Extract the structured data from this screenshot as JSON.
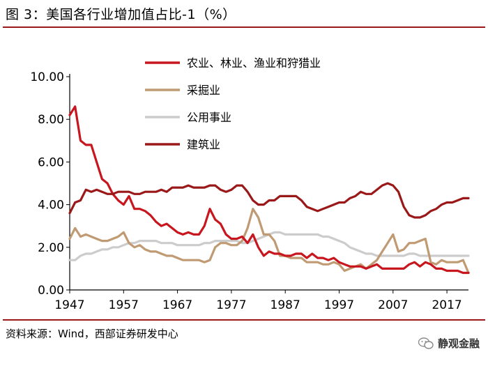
{
  "title": "图 3：美国各行业增加值占比-1（%）",
  "source": "资料来源：Wind，西部证券研发中心",
  "brand": "静观金融",
  "chart_data": {
    "type": "line",
    "title": "图 3：美国各行业增加值占比-1（%）",
    "xlabel": "",
    "ylabel": "",
    "xlim": [
      1947,
      2021
    ],
    "ylim": [
      0,
      10
    ],
    "grid": false,
    "legend_position": "top",
    "x_ticks": [
      "1947",
      "1957",
      "1967",
      "1977",
      "1987",
      "1997",
      "2007",
      "2017"
    ],
    "y_ticks": [
      "0.00",
      "2.00",
      "4.00",
      "6.00",
      "8.00",
      "10.00"
    ],
    "series": [
      {
        "name": "农业、林业、渔业和狩猎业",
        "color": "#c8161e",
        "x": [
          1947,
          1948,
          1949,
          1950,
          1951,
          1952,
          1953,
          1954,
          1955,
          1956,
          1957,
          1958,
          1959,
          1960,
          1961,
          1962,
          1963,
          1964,
          1965,
          1966,
          1967,
          1968,
          1969,
          1970,
          1971,
          1972,
          1973,
          1974,
          1975,
          1976,
          1977,
          1978,
          1979,
          1980,
          1981,
          1982,
          1983,
          1984,
          1985,
          1986,
          1987,
          1988,
          1989,
          1990,
          1991,
          1992,
          1993,
          1994,
          1995,
          1996,
          1997,
          1998,
          1999,
          2000,
          2001,
          2002,
          2003,
          2004,
          2005,
          2006,
          2007,
          2008,
          2009,
          2010,
          2011,
          2012,
          2013,
          2014,
          2015,
          2016,
          2017,
          2018,
          2019,
          2020,
          2021
        ],
        "values": [
          8.2,
          8.6,
          7.0,
          6.8,
          6.8,
          6.0,
          5.2,
          5.0,
          4.5,
          4.2,
          4.0,
          4.4,
          3.8,
          3.8,
          3.7,
          3.5,
          3.2,
          3.0,
          3.1,
          2.9,
          2.7,
          2.6,
          2.7,
          2.6,
          2.6,
          3.0,
          3.8,
          3.3,
          3.1,
          2.6,
          2.4,
          2.4,
          2.5,
          2.2,
          2.6,
          2.0,
          1.6,
          1.8,
          1.7,
          1.7,
          1.6,
          1.6,
          1.7,
          1.7,
          1.5,
          1.7,
          1.5,
          1.5,
          1.4,
          1.5,
          1.3,
          1.2,
          1.1,
          1.1,
          1.1,
          1.0,
          1.1,
          1.2,
          1.0,
          1.0,
          1.0,
          1.0,
          1.0,
          1.2,
          1.3,
          1.1,
          1.3,
          1.2,
          1.0,
          1.0,
          0.9,
          0.9,
          0.9,
          0.8,
          0.8
        ]
      },
      {
        "name": "采掘业",
        "color": "#bf9a72",
        "x": [
          1947,
          1948,
          1949,
          1950,
          1951,
          1952,
          1953,
          1954,
          1955,
          1956,
          1957,
          1958,
          1959,
          1960,
          1961,
          1962,
          1963,
          1964,
          1965,
          1966,
          1967,
          1968,
          1969,
          1970,
          1971,
          1972,
          1973,
          1974,
          1975,
          1976,
          1977,
          1978,
          1979,
          1980,
          1981,
          1982,
          1983,
          1984,
          1985,
          1986,
          1987,
          1988,
          1989,
          1990,
          1991,
          1992,
          1993,
          1994,
          1995,
          1996,
          1997,
          1998,
          1999,
          2000,
          2001,
          2002,
          2003,
          2004,
          2005,
          2006,
          2007,
          2008,
          2009,
          2010,
          2011,
          2012,
          2013,
          2014,
          2015,
          2016,
          2017,
          2018,
          2019,
          2020,
          2021
        ],
        "values": [
          2.4,
          2.9,
          2.5,
          2.6,
          2.5,
          2.4,
          2.3,
          2.3,
          2.4,
          2.5,
          2.7,
          2.2,
          2.0,
          2.1,
          1.9,
          1.8,
          1.8,
          1.7,
          1.6,
          1.6,
          1.5,
          1.4,
          1.4,
          1.4,
          1.4,
          1.3,
          1.4,
          2.0,
          2.2,
          2.2,
          2.1,
          2.1,
          2.3,
          2.9,
          3.8,
          3.4,
          2.6,
          2.6,
          2.3,
          1.6,
          1.6,
          1.5,
          1.5,
          1.5,
          1.3,
          1.3,
          1.3,
          1.2,
          1.2,
          1.3,
          1.2,
          0.9,
          1.0,
          1.1,
          1.2,
          1.0,
          1.2,
          1.4,
          1.8,
          2.2,
          2.6,
          1.8,
          1.9,
          2.2,
          2.2,
          2.3,
          2.4,
          1.3,
          1.2,
          1.4,
          1.3,
          1.3,
          1.3,
          1.4,
          0.8
        ]
      },
      {
        "name": "公用事业",
        "color": "#cccccc",
        "x": [
          1947,
          1948,
          1949,
          1950,
          1951,
          1952,
          1953,
          1954,
          1955,
          1956,
          1957,
          1958,
          1959,
          1960,
          1961,
          1962,
          1963,
          1964,
          1965,
          1966,
          1967,
          1968,
          1969,
          1970,
          1971,
          1972,
          1973,
          1974,
          1975,
          1976,
          1977,
          1978,
          1979,
          1980,
          1981,
          1982,
          1983,
          1984,
          1985,
          1986,
          1987,
          1988,
          1989,
          1990,
          1991,
          1992,
          1993,
          1994,
          1995,
          1996,
          1997,
          1998,
          1999,
          2000,
          2001,
          2002,
          2003,
          2004,
          2005,
          2006,
          2007,
          2008,
          2009,
          2010,
          2011,
          2012,
          2013,
          2014,
          2015,
          2016,
          2017,
          2018,
          2019,
          2020,
          2021
        ],
        "values": [
          1.4,
          1.4,
          1.6,
          1.7,
          1.7,
          1.8,
          1.9,
          1.9,
          2.0,
          2.0,
          2.1,
          2.2,
          2.2,
          2.3,
          2.3,
          2.3,
          2.3,
          2.2,
          2.2,
          2.2,
          2.1,
          2.1,
          2.1,
          2.1,
          2.1,
          2.2,
          2.2,
          2.3,
          2.3,
          2.3,
          2.3,
          2.3,
          2.2,
          2.2,
          2.3,
          2.4,
          2.5,
          2.6,
          2.7,
          2.7,
          2.6,
          2.6,
          2.6,
          2.6,
          2.6,
          2.6,
          2.6,
          2.5,
          2.5,
          2.4,
          2.3,
          2.2,
          2.0,
          1.9,
          1.8,
          1.7,
          1.7,
          1.6,
          1.6,
          1.6,
          1.6,
          1.6,
          1.6,
          1.7,
          1.7,
          1.6,
          1.6,
          1.6,
          1.6,
          1.6,
          1.6,
          1.6,
          1.6,
          1.6,
          1.6
        ]
      },
      {
        "name": "建筑业",
        "color": "#9a1818",
        "x": [
          1947,
          1948,
          1949,
          1950,
          1951,
          1952,
          1953,
          1954,
          1955,
          1956,
          1957,
          1958,
          1959,
          1960,
          1961,
          1962,
          1963,
          1964,
          1965,
          1966,
          1967,
          1968,
          1969,
          1970,
          1971,
          1972,
          1973,
          1974,
          1975,
          1976,
          1977,
          1978,
          1979,
          1980,
          1981,
          1982,
          1983,
          1984,
          1985,
          1986,
          1987,
          1988,
          1989,
          1990,
          1991,
          1992,
          1993,
          1994,
          1995,
          1996,
          1997,
          1998,
          1999,
          2000,
          2001,
          2002,
          2003,
          2004,
          2005,
          2006,
          2007,
          2008,
          2009,
          2010,
          2011,
          2012,
          2013,
          2014,
          2015,
          2016,
          2017,
          2018,
          2019,
          2020,
          2021
        ],
        "values": [
          3.6,
          4.1,
          4.2,
          4.7,
          4.6,
          4.7,
          4.6,
          4.5,
          4.5,
          4.6,
          4.6,
          4.6,
          4.5,
          4.5,
          4.6,
          4.6,
          4.6,
          4.7,
          4.6,
          4.8,
          4.8,
          4.8,
          4.9,
          4.8,
          4.8,
          4.8,
          4.9,
          4.9,
          4.7,
          4.6,
          4.7,
          4.9,
          4.9,
          4.6,
          4.2,
          4.0,
          4.0,
          4.2,
          4.2,
          4.4,
          4.4,
          4.4,
          4.4,
          4.2,
          3.9,
          3.8,
          3.7,
          3.8,
          3.9,
          4.0,
          4.1,
          4.1,
          4.3,
          4.4,
          4.6,
          4.5,
          4.5,
          4.7,
          4.9,
          5.0,
          4.9,
          4.6,
          3.9,
          3.5,
          3.4,
          3.4,
          3.5,
          3.7,
          3.8,
          4.0,
          4.1,
          4.1,
          4.2,
          4.3,
          4.3
        ]
      }
    ]
  }
}
